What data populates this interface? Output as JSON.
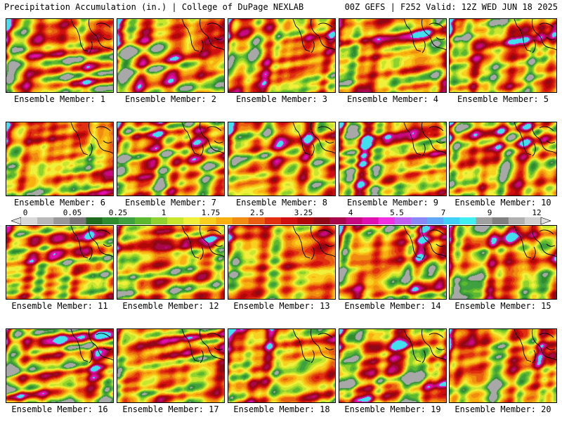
{
  "header": {
    "title_left": "Precipitation Accumulation (in.) | College of DuPage NEXLAB",
    "title_right": "00Z GEFS | F252 Valid: 12Z WED JUN 18 2025"
  },
  "colorbar": {
    "tick_labels": [
      "0",
      "0.05",
      "0.25",
      "1",
      "1.75",
      "2.5",
      "3.25",
      "4",
      "5.5",
      "7",
      "9",
      "12"
    ],
    "colors": [
      "#d8d8d8",
      "#b8b8b8",
      "#989898",
      "#787878",
      "#1f6b1f",
      "#2e8b2e",
      "#3fa03f",
      "#5cb82e",
      "#8fd12e",
      "#c8e62e",
      "#f0f03a",
      "#f8d020",
      "#f8b010",
      "#f08c10",
      "#e86010",
      "#e03010",
      "#d01010",
      "#b00808",
      "#900818",
      "#a8084a",
      "#c80880",
      "#e010b0",
      "#f030e0",
      "#c060f0",
      "#8888f8",
      "#60a8f8",
      "#40d0f8",
      "#40f0f0",
      "#a0a0a0",
      "#808080",
      "#b0b0b0",
      "#d0d0d0"
    ],
    "arrow_color": "#e0e0e0"
  },
  "ensemble": {
    "label_prefix": "Ensemble Member:",
    "members": [
      {
        "label": "Ensemble Member: 1"
      },
      {
        "label": "Ensemble Member: 2"
      },
      {
        "label": "Ensemble Member: 3"
      },
      {
        "label": "Ensemble Member: 4"
      },
      {
        "label": "Ensemble Member: 5"
      },
      {
        "label": "Ensemble Member: 6"
      },
      {
        "label": "Ensemble Member: 7"
      },
      {
        "label": "Ensemble Member: 8"
      },
      {
        "label": "Ensemble Member: 9"
      },
      {
        "label": "Ensemble Member: 10"
      },
      {
        "label": "Ensemble Member: 11"
      },
      {
        "label": "Ensemble Member: 12"
      },
      {
        "label": "Ensemble Member: 13"
      },
      {
        "label": "Ensemble Member: 14"
      },
      {
        "label": "Ensemble Member: 15"
      },
      {
        "label": "Ensemble Member: 16"
      },
      {
        "label": "Ensemble Member: 17"
      },
      {
        "label": "Ensemble Member: 18"
      },
      {
        "label": "Ensemble Member: 19"
      },
      {
        "label": "Ensemble Member: 20"
      }
    ]
  }
}
